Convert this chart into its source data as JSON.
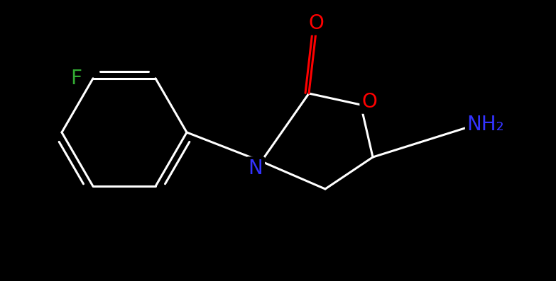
{
  "background_color": "#000000",
  "figsize": [
    7.83,
    3.97
  ],
  "dpi": 100,
  "bond_color": "#ffffff",
  "bond_lw": 2.2,
  "atom_labels": {
    "O_carbonyl": {
      "label": "O",
      "color": "#ff0000",
      "fontsize": 20
    },
    "O_ring": {
      "label": "O",
      "color": "#ff0000",
      "fontsize": 20
    },
    "N": {
      "label": "N",
      "color": "#3333ff",
      "fontsize": 20
    },
    "F": {
      "label": "F",
      "color": "#33aa33",
      "fontsize": 20
    },
    "NH2": {
      "label": "NH₂",
      "color": "#3333ff",
      "fontsize": 20
    }
  }
}
